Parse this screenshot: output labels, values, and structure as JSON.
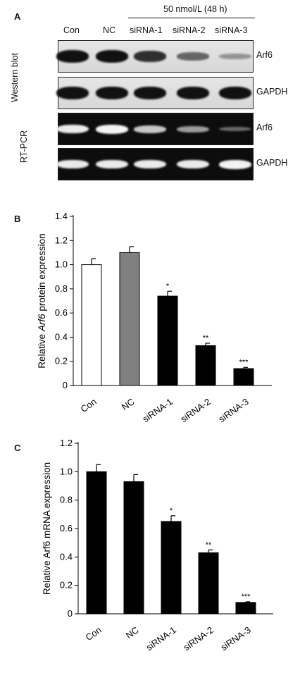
{
  "panels": {
    "a": {
      "letter": "A",
      "condition": "50 nmol/L (48 h)",
      "lanes": [
        "Con",
        "NC",
        "siRNA-1",
        "siRNA-2",
        "siRNA-3"
      ],
      "western_label": "Western blot",
      "rtpcr_label": "RT-PCR",
      "rows": [
        {
          "label": "Arf6",
          "kind": "blot",
          "intensity": [
            1.0,
            1.0,
            0.8,
            0.45,
            0.15
          ]
        },
        {
          "label": "GAPDH",
          "kind": "blot",
          "intensity": [
            1.0,
            1.0,
            1.0,
            1.0,
            1.0
          ]
        },
        {
          "label": "Arf6",
          "kind": "gel",
          "intensity": [
            0.95,
            1.0,
            0.75,
            0.5,
            0.2
          ]
        },
        {
          "label": "GAPDH",
          "kind": "gel",
          "intensity": [
            0.95,
            0.95,
            0.95,
            0.95,
            1.0
          ]
        }
      ]
    },
    "b": {
      "letter": "B"
    },
    "c": {
      "letter": "C"
    }
  },
  "chart_data": [
    {
      "type": "bar",
      "panel": "B",
      "categories": [
        "Con",
        "NC",
        "siRNA-1",
        "siRNA-2",
        "siRNA-3"
      ],
      "values": [
        1.0,
        1.1,
        0.74,
        0.33,
        0.14
      ],
      "errors": [
        0.05,
        0.05,
        0.04,
        0.02,
        0.01
      ],
      "bar_colors": [
        "#ffffff",
        "#808080",
        "#000000",
        "#000000",
        "#000000"
      ],
      "annotations": [
        "",
        "",
        "*",
        "**",
        "***"
      ],
      "ylabel_parts": [
        "Relative ",
        "Arf6",
        " protein expression"
      ],
      "ylim": [
        0,
        1.4
      ],
      "yticks": [
        "0",
        "0.2",
        "0.4",
        "0.6",
        "0.8",
        "1.0",
        "1.2",
        "1.4"
      ]
    },
    {
      "type": "bar",
      "panel": "C",
      "categories": [
        "Con",
        "NC",
        "siRNA-1",
        "siRNA-2",
        "siRNA-3"
      ],
      "values": [
        1.0,
        0.93,
        0.65,
        0.43,
        0.08
      ],
      "errors": [
        0.05,
        0.05,
        0.04,
        0.02,
        0.005
      ],
      "bar_colors": [
        "#000000",
        "#000000",
        "#000000",
        "#000000",
        "#000000"
      ],
      "annotations": [
        "",
        "",
        "*",
        "**",
        "***"
      ],
      "ylabel_parts": [
        "Relative Arf6 mRNA expression"
      ],
      "ylim": [
        0,
        1.2
      ],
      "yticks": [
        "0",
        "0.2",
        "0.4",
        "0.6",
        "0.8",
        "1.0",
        "1.2"
      ]
    }
  ]
}
